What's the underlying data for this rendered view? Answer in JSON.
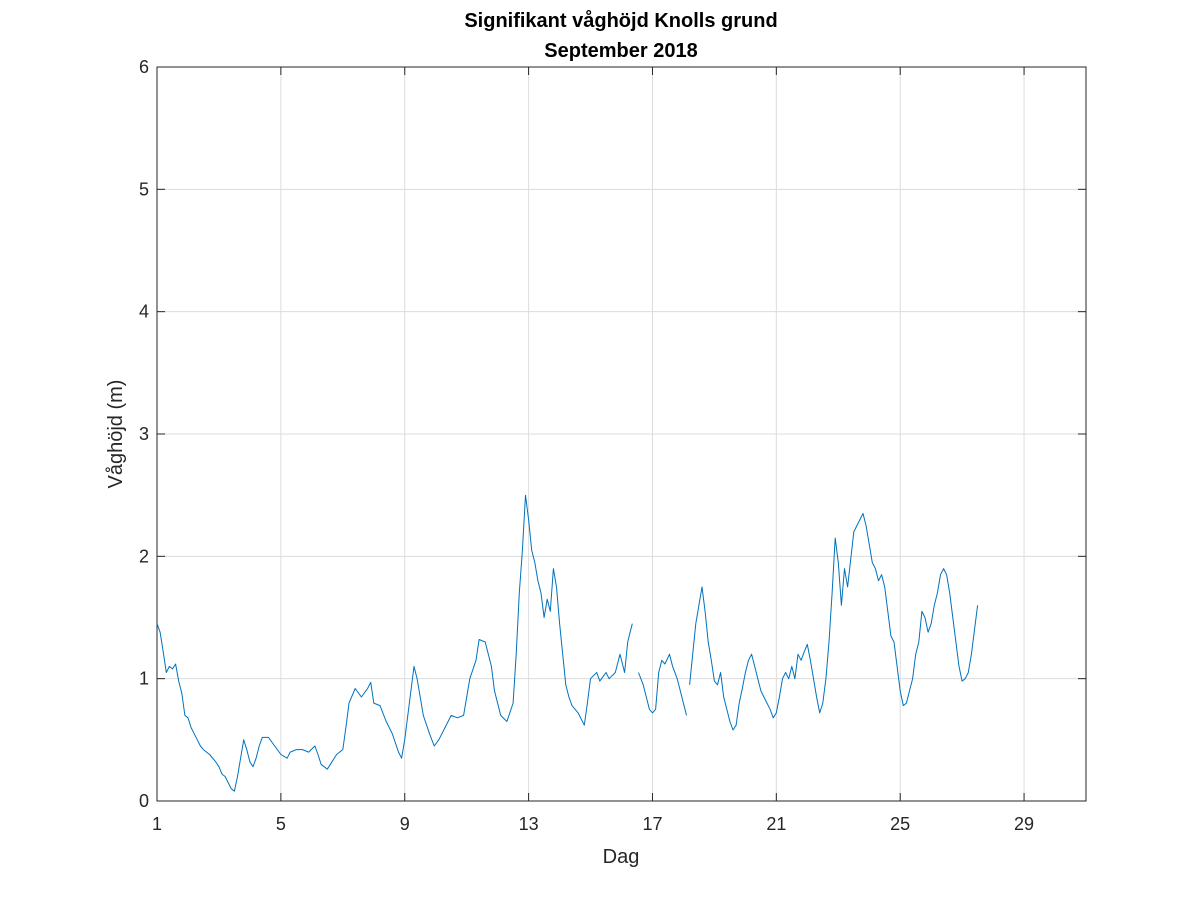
{
  "chart_data": {
    "type": "line",
    "title": "Signifikant våghöjd Knolls grund",
    "subtitle": "September 2018",
    "xlabel": "Dag",
    "ylabel": "Våghöjd (m)",
    "xlim": [
      1,
      31
    ],
    "ylim": [
      0,
      6
    ],
    "xticks": [
      1,
      5,
      9,
      13,
      17,
      21,
      25,
      29
    ],
    "yticks": [
      0,
      1,
      2,
      3,
      4,
      5,
      6
    ],
    "grid": true,
    "legend": "none",
    "series": [
      {
        "color": "#0072bd",
        "segments": [
          [
            [
              1.0,
              1.45
            ],
            [
              1.1,
              1.38
            ],
            [
              1.2,
              1.22
            ],
            [
              1.3,
              1.05
            ],
            [
              1.4,
              1.1
            ],
            [
              1.5,
              1.08
            ],
            [
              1.6,
              1.12
            ],
            [
              1.7,
              0.98
            ],
            [
              1.8,
              0.88
            ],
            [
              1.9,
              0.7
            ],
            [
              2.0,
              0.68
            ],
            [
              2.1,
              0.6
            ],
            [
              2.2,
              0.55
            ],
            [
              2.3,
              0.5
            ],
            [
              2.4,
              0.45
            ],
            [
              2.5,
              0.42
            ],
            [
              2.7,
              0.38
            ],
            [
              2.9,
              0.32
            ],
            [
              3.0,
              0.28
            ],
            [
              3.1,
              0.22
            ],
            [
              3.2,
              0.2
            ],
            [
              3.3,
              0.15
            ],
            [
              3.4,
              0.1
            ],
            [
              3.5,
              0.08
            ],
            [
              3.6,
              0.2
            ],
            [
              3.7,
              0.35
            ],
            [
              3.8,
              0.5
            ],
            [
              3.9,
              0.42
            ],
            [
              4.0,
              0.32
            ],
            [
              4.1,
              0.28
            ],
            [
              4.2,
              0.35
            ],
            [
              4.3,
              0.45
            ],
            [
              4.4,
              0.52
            ],
            [
              4.6,
              0.52
            ],
            [
              4.8,
              0.45
            ],
            [
              5.0,
              0.38
            ],
            [
              5.2,
              0.35
            ],
            [
              5.3,
              0.4
            ],
            [
              5.5,
              0.42
            ],
            [
              5.7,
              0.42
            ],
            [
              5.9,
              0.4
            ],
            [
              6.1,
              0.45
            ],
            [
              6.2,
              0.38
            ],
            [
              6.3,
              0.3
            ],
            [
              6.5,
              0.26
            ],
            [
              6.6,
              0.3
            ],
            [
              6.8,
              0.38
            ],
            [
              7.0,
              0.42
            ],
            [
              7.1,
              0.6
            ],
            [
              7.2,
              0.8
            ],
            [
              7.4,
              0.92
            ],
            [
              7.6,
              0.85
            ],
            [
              7.8,
              0.92
            ],
            [
              7.9,
              0.97
            ],
            [
              8.0,
              0.8
            ],
            [
              8.2,
              0.78
            ],
            [
              8.4,
              0.65
            ],
            [
              8.6,
              0.55
            ],
            [
              8.8,
              0.4
            ],
            [
              8.9,
              0.35
            ],
            [
              9.0,
              0.5
            ],
            [
              9.1,
              0.7
            ],
            [
              9.2,
              0.9
            ],
            [
              9.3,
              1.1
            ],
            [
              9.4,
              1.0
            ],
            [
              9.5,
              0.85
            ],
            [
              9.6,
              0.7
            ],
            [
              9.8,
              0.55
            ],
            [
              9.95,
              0.45
            ],
            [
              10.1,
              0.5
            ],
            [
              10.3,
              0.6
            ],
            [
              10.5,
              0.7
            ],
            [
              10.7,
              0.68
            ],
            [
              10.9,
              0.7
            ],
            [
              11.0,
              0.85
            ],
            [
              11.1,
              1.0
            ],
            [
              11.3,
              1.15
            ],
            [
              11.4,
              1.32
            ],
            [
              11.6,
              1.3
            ],
            [
              11.8,
              1.1
            ],
            [
              11.9,
              0.9
            ],
            [
              12.1,
              0.7
            ],
            [
              12.3,
              0.65
            ],
            [
              12.5,
              0.8
            ],
            [
              12.6,
              1.2
            ],
            [
              12.7,
              1.7
            ],
            [
              12.8,
              2.05
            ],
            [
              12.9,
              2.5
            ],
            [
              13.0,
              2.3
            ],
            [
              13.1,
              2.05
            ],
            [
              13.2,
              1.95
            ],
            [
              13.3,
              1.8
            ],
            [
              13.4,
              1.7
            ],
            [
              13.5,
              1.5
            ],
            [
              13.6,
              1.65
            ],
            [
              13.7,
              1.55
            ],
            [
              13.8,
              1.9
            ],
            [
              13.9,
              1.75
            ],
            [
              14.0,
              1.45
            ],
            [
              14.1,
              1.2
            ],
            [
              14.2,
              0.95
            ],
            [
              14.3,
              0.85
            ],
            [
              14.4,
              0.78
            ],
            [
              14.6,
              0.72
            ],
            [
              14.8,
              0.62
            ],
            [
              14.9,
              0.8
            ],
            [
              15.0,
              1.0
            ],
            [
              15.2,
              1.05
            ],
            [
              15.3,
              0.98
            ],
            [
              15.5,
              1.05
            ],
            [
              15.6,
              1.0
            ],
            [
              15.8,
              1.05
            ],
            [
              15.95,
              1.2
            ],
            [
              16.1,
              1.05
            ],
            [
              16.2,
              1.3
            ],
            [
              16.35,
              1.45
            ]
          ],
          [
            [
              16.55,
              1.05
            ],
            [
              16.7,
              0.95
            ],
            [
              16.8,
              0.85
            ],
            [
              16.9,
              0.75
            ],
            [
              17.0,
              0.72
            ],
            [
              17.1,
              0.75
            ],
            [
              17.2,
              1.05
            ],
            [
              17.3,
              1.15
            ],
            [
              17.4,
              1.12
            ],
            [
              17.55,
              1.2
            ],
            [
              17.65,
              1.1
            ],
            [
              17.8,
              1.0
            ],
            [
              17.9,
              0.9
            ],
            [
              18.0,
              0.8
            ],
            [
              18.1,
              0.7
            ]
          ],
          [
            [
              18.2,
              0.95
            ],
            [
              18.3,
              1.2
            ],
            [
              18.4,
              1.45
            ],
            [
              18.5,
              1.6
            ],
            [
              18.6,
              1.75
            ],
            [
              18.7,
              1.55
            ],
            [
              18.8,
              1.3
            ],
            [
              18.9,
              1.15
            ],
            [
              19.0,
              0.98
            ],
            [
              19.1,
              0.95
            ],
            [
              19.2,
              1.05
            ],
            [
              19.3,
              0.85
            ],
            [
              19.4,
              0.75
            ],
            [
              19.5,
              0.65
            ],
            [
              19.6,
              0.58
            ],
            [
              19.7,
              0.62
            ],
            [
              19.8,
              0.8
            ],
            [
              19.9,
              0.92
            ],
            [
              20.0,
              1.05
            ],
            [
              20.1,
              1.15
            ],
            [
              20.2,
              1.2
            ],
            [
              20.3,
              1.1
            ],
            [
              20.4,
              1.0
            ],
            [
              20.5,
              0.9
            ],
            [
              20.6,
              0.85
            ],
            [
              20.8,
              0.75
            ],
            [
              20.9,
              0.68
            ],
            [
              21.0,
              0.72
            ],
            [
              21.1,
              0.85
            ],
            [
              21.2,
              1.0
            ],
            [
              21.3,
              1.05
            ],
            [
              21.4,
              1.0
            ],
            [
              21.5,
              1.1
            ],
            [
              21.6,
              1.0
            ],
            [
              21.7,
              1.2
            ],
            [
              21.8,
              1.15
            ],
            [
              21.9,
              1.22
            ],
            [
              22.0,
              1.28
            ],
            [
              22.1,
              1.15
            ],
            [
              22.2,
              1.0
            ],
            [
              22.3,
              0.85
            ],
            [
              22.4,
              0.72
            ],
            [
              22.5,
              0.8
            ],
            [
              22.6,
              1.0
            ],
            [
              22.7,
              1.3
            ],
            [
              22.8,
              1.7
            ],
            [
              22.9,
              2.15
            ],
            [
              23.0,
              1.95
            ],
            [
              23.1,
              1.6
            ],
            [
              23.2,
              1.9
            ],
            [
              23.3,
              1.75
            ],
            [
              23.5,
              2.2
            ],
            [
              23.7,
              2.3
            ],
            [
              23.8,
              2.35
            ],
            [
              23.9,
              2.25
            ],
            [
              24.0,
              2.1
            ],
            [
              24.1,
              1.95
            ],
            [
              24.2,
              1.9
            ],
            [
              24.3,
              1.8
            ],
            [
              24.4,
              1.85
            ],
            [
              24.5,
              1.75
            ],
            [
              24.6,
              1.55
            ],
            [
              24.7,
              1.35
            ],
            [
              24.8,
              1.3
            ],
            [
              24.9,
              1.1
            ],
            [
              25.0,
              0.9
            ],
            [
              25.1,
              0.78
            ],
            [
              25.2,
              0.8
            ],
            [
              25.3,
              0.9
            ],
            [
              25.4,
              1.0
            ],
            [
              25.5,
              1.2
            ],
            [
              25.6,
              1.3
            ],
            [
              25.7,
              1.55
            ],
            [
              25.8,
              1.5
            ],
            [
              25.9,
              1.38
            ],
            [
              26.0,
              1.45
            ],
            [
              26.1,
              1.6
            ],
            [
              26.2,
              1.7
            ],
            [
              26.3,
              1.85
            ],
            [
              26.4,
              1.9
            ],
            [
              26.5,
              1.85
            ],
            [
              26.6,
              1.7
            ],
            [
              26.7,
              1.5
            ],
            [
              26.8,
              1.3
            ],
            [
              26.9,
              1.1
            ],
            [
              27.0,
              0.98
            ],
            [
              27.1,
              1.0
            ],
            [
              27.2,
              1.05
            ],
            [
              27.3,
              1.2
            ],
            [
              27.4,
              1.4
            ],
            [
              27.5,
              1.6
            ]
          ]
        ]
      }
    ]
  }
}
